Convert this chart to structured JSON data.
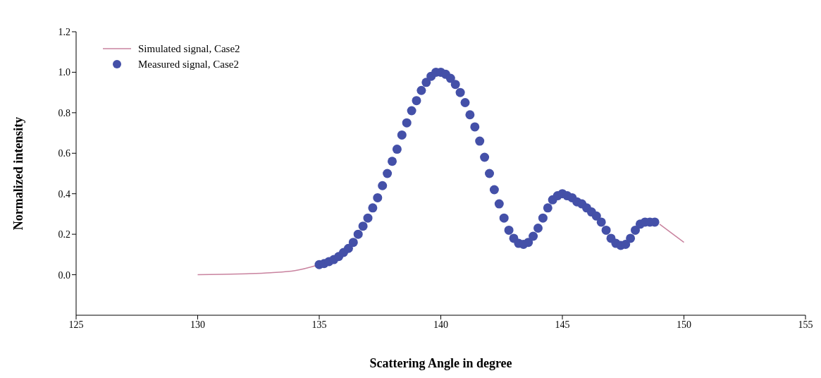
{
  "chart_data": {
    "type": "scatter",
    "xlabel": "Scattering Angle in degree",
    "ylabel": "Normalized intensity",
    "xlim": [
      125,
      155
    ],
    "xticks": [
      125,
      130,
      135,
      140,
      145,
      150,
      155
    ],
    "ylim": [
      -0.2,
      1.2
    ],
    "yticks": [
      {
        "value": 0,
        "label": "0.0"
      },
      {
        "value": 0.2,
        "label": "0.2"
      },
      {
        "value": 0.4,
        "label": "0.4"
      },
      {
        "value": 0.6,
        "label": "0.6"
      },
      {
        "value": 0.8,
        "label": "0.8"
      },
      {
        "value": 1,
        "label": "1.0"
      },
      {
        "value": 1.2,
        "label": "1.2"
      }
    ],
    "grid": false,
    "legend": "top left",
    "series": [
      {
        "name": "Simulated signal, Case2",
        "type": "line",
        "color": "#c9839f",
        "marker": "none",
        "line_style": "solid",
        "x": [
          130,
          131,
          132,
          133,
          134,
          135,
          136,
          137,
          138,
          139,
          140,
          141,
          142,
          143,
          143.4,
          144,
          145,
          146,
          147,
          147.4,
          148,
          148.5,
          149,
          150
        ],
        "values": [
          0,
          0.002,
          0.005,
          0.01,
          0.02,
          0.05,
          null,
          null,
          null,
          null,
          null,
          null,
          null,
          null,
          null,
          null,
          null,
          null,
          null,
          null,
          null,
          null,
          0.25,
          0.16
        ]
      },
      {
        "name": "Measured signal, Case2",
        "color": "#4450a8",
        "marker": "circle",
        "x": [
          135.0,
          135.2,
          135.4,
          135.6,
          135.8,
          136.0,
          136.2,
          136.4,
          136.6,
          136.8,
          137.0,
          137.2,
          137.4,
          137.6,
          137.8,
          138.0,
          138.2,
          138.4,
          138.6,
          138.8,
          139.0,
          139.2,
          139.4,
          139.6,
          139.8,
          140.0,
          140.2,
          140.4,
          140.6,
          140.8,
          141.0,
          141.2,
          141.4,
          141.6,
          141.8,
          142.0,
          142.2,
          142.4,
          142.6,
          142.8,
          143.0,
          143.2,
          143.4,
          143.6,
          143.8,
          144.0,
          144.2,
          144.4,
          144.6,
          144.8,
          145.0,
          145.2,
          145.4,
          145.6,
          145.8,
          146.0,
          146.2,
          146.4,
          146.6,
          146.8,
          147.0,
          147.2,
          147.4,
          147.6,
          147.8,
          148.0,
          148.2,
          148.4,
          148.6,
          148.8
        ],
        "values": [
          0.05,
          0.055,
          0.065,
          0.075,
          0.09,
          0.11,
          0.13,
          0.16,
          0.2,
          0.24,
          0.28,
          0.33,
          0.38,
          0.44,
          0.5,
          0.56,
          0.62,
          0.69,
          0.75,
          0.81,
          0.86,
          0.91,
          0.95,
          0.98,
          1.0,
          1.0,
          0.99,
          0.97,
          0.94,
          0.9,
          0.85,
          0.79,
          0.73,
          0.66,
          0.58,
          0.5,
          0.42,
          0.35,
          0.28,
          0.22,
          0.18,
          0.155,
          0.15,
          0.16,
          0.19,
          0.23,
          0.28,
          0.33,
          0.37,
          0.39,
          0.4,
          0.39,
          0.38,
          0.36,
          0.35,
          0.33,
          0.31,
          0.29,
          0.26,
          0.22,
          0.18,
          0.155,
          0.145,
          0.15,
          0.18,
          0.22,
          0.25,
          0.26,
          0.26,
          0.26
        ]
      }
    ]
  }
}
